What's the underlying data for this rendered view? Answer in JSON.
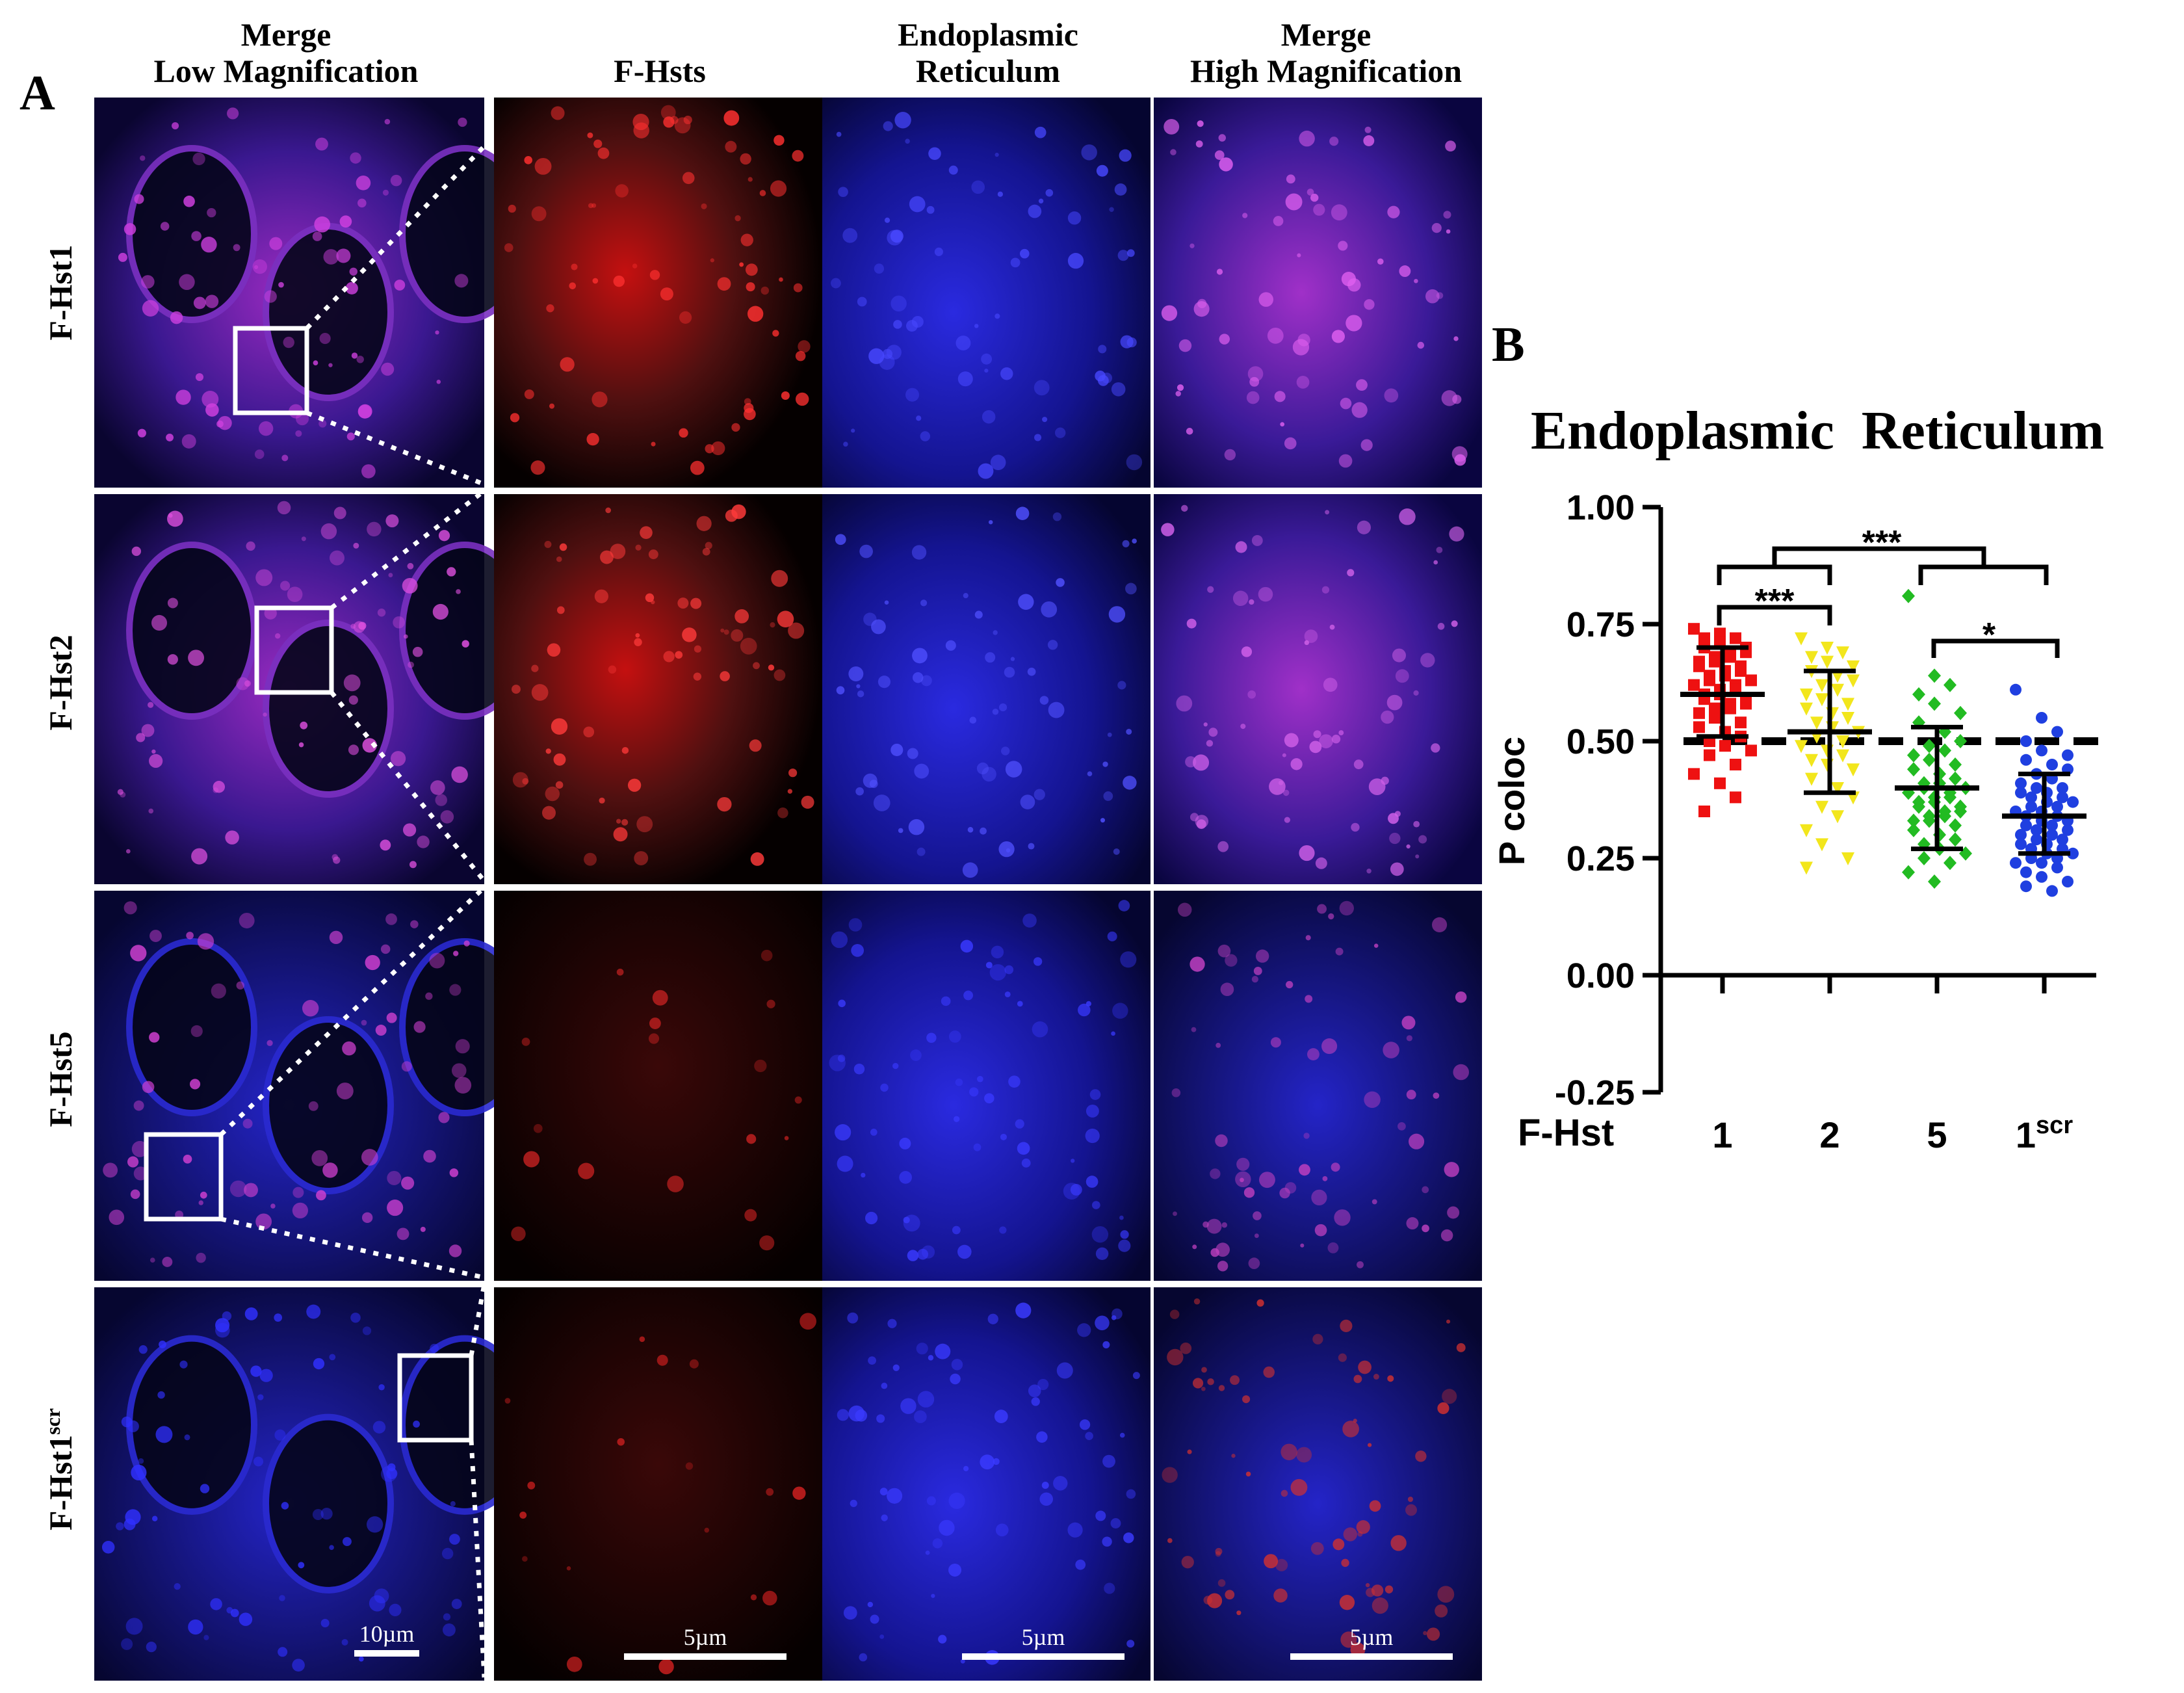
{
  "panel_a": {
    "label": "A",
    "columns": [
      [
        "Merge",
        "Low Magnification"
      ],
      [
        "F-Hsts"
      ],
      [
        "Endoplasmic",
        "Reticulum"
      ],
      [
        "Merge",
        "High Magnification"
      ]
    ],
    "rows": [
      {
        "label": "F-Hst1",
        "sup": ""
      },
      {
        "label": "F-Hst2",
        "sup": ""
      },
      {
        "label": "F-Hst5",
        "sup": ""
      },
      {
        "label": "F-Hst1",
        "sup": "scr"
      }
    ],
    "scalebars": [
      "10µm",
      "5µm",
      "5µm",
      "5µm"
    ],
    "colors": {
      "fhst_channel": "#ff1a1a",
      "er_channel": "#2a2aff",
      "merge": "#b030d0",
      "background": "#000000"
    }
  },
  "panel_b": {
    "label": "B",
    "title": "Endoplasmic  Reticulum",
    "x_prefix": "F-Hst",
    "significance": [
      {
        "label": "***",
        "between": "F-Hst 1, 2 vs 5, 1scr"
      },
      {
        "label": "***",
        "between": "1 vs 2"
      },
      {
        "label": "*",
        "between": "5 vs 1scr"
      }
    ]
  },
  "chart_data": {
    "type": "scatter",
    "title": "Endoplasmic  Reticulum",
    "xlabel": "F-Hst",
    "ylabel": "P coloc",
    "ylim": [
      -0.25,
      1.0
    ],
    "yticks": [
      "1.00",
      "0.75",
      "0.50",
      "0.25",
      "0.00",
      "-0.25"
    ],
    "reference_line": 0.5,
    "categories": [
      {
        "label": "1",
        "sup": "",
        "color": "#ee1111",
        "marker": "square",
        "mean": 0.6,
        "sd_low": 0.51,
        "sd_high": 0.7,
        "points": [
          0.74,
          0.73,
          0.72,
          0.72,
          0.71,
          0.7,
          0.7,
          0.69,
          0.69,
          0.68,
          0.68,
          0.67,
          0.67,
          0.66,
          0.66,
          0.65,
          0.65,
          0.64,
          0.64,
          0.63,
          0.63,
          0.62,
          0.62,
          0.61,
          0.61,
          0.6,
          0.6,
          0.59,
          0.59,
          0.58,
          0.58,
          0.57,
          0.57,
          0.56,
          0.55,
          0.54,
          0.53,
          0.52,
          0.51,
          0.5,
          0.49,
          0.48,
          0.47,
          0.45,
          0.43,
          0.41,
          0.38,
          0.35
        ]
      },
      {
        "label": "2",
        "sup": "",
        "color": "#f2e61c",
        "marker": "triangle-down",
        "mean": 0.52,
        "sd_low": 0.39,
        "sd_high": 0.65,
        "points": [
          0.72,
          0.7,
          0.69,
          0.68,
          0.67,
          0.66,
          0.65,
          0.64,
          0.63,
          0.62,
          0.61,
          0.6,
          0.59,
          0.58,
          0.57,
          0.56,
          0.55,
          0.54,
          0.53,
          0.52,
          0.51,
          0.5,
          0.49,
          0.48,
          0.47,
          0.46,
          0.45,
          0.44,
          0.42,
          0.4,
          0.38,
          0.36,
          0.34,
          0.31,
          0.28,
          0.25,
          0.23
        ]
      },
      {
        "label": "5",
        "sup": "",
        "color": "#22bb22",
        "marker": "diamond",
        "mean": 0.4,
        "sd_low": 0.27,
        "sd_high": 0.53,
        "points": [
          0.81,
          0.64,
          0.62,
          0.6,
          0.58,
          0.56,
          0.54,
          0.52,
          0.5,
          0.49,
          0.48,
          0.47,
          0.46,
          0.45,
          0.44,
          0.43,
          0.42,
          0.41,
          0.41,
          0.4,
          0.4,
          0.39,
          0.39,
          0.38,
          0.38,
          0.37,
          0.37,
          0.36,
          0.36,
          0.35,
          0.35,
          0.34,
          0.34,
          0.33,
          0.33,
          0.32,
          0.31,
          0.3,
          0.29,
          0.28,
          0.27,
          0.26,
          0.25,
          0.24,
          0.22,
          0.2
        ]
      },
      {
        "label": "1",
        "sup": "scr",
        "color": "#1f3fe0",
        "marker": "circle",
        "mean": 0.34,
        "sd_low": 0.26,
        "sd_high": 0.43,
        "points": [
          0.61,
          0.55,
          0.52,
          0.5,
          0.48,
          0.47,
          0.46,
          0.45,
          0.44,
          0.43,
          0.42,
          0.41,
          0.4,
          0.4,
          0.39,
          0.39,
          0.38,
          0.38,
          0.37,
          0.37,
          0.36,
          0.36,
          0.35,
          0.35,
          0.34,
          0.34,
          0.33,
          0.33,
          0.32,
          0.32,
          0.31,
          0.31,
          0.3,
          0.3,
          0.29,
          0.29,
          0.28,
          0.28,
          0.27,
          0.27,
          0.26,
          0.26,
          0.25,
          0.25,
          0.24,
          0.24,
          0.23,
          0.22,
          0.21,
          0.2,
          0.19,
          0.18
        ]
      }
    ]
  }
}
